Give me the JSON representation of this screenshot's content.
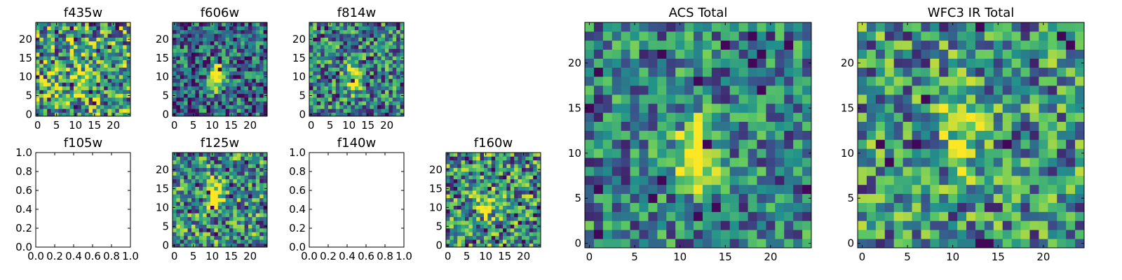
{
  "chart_data": {
    "type": "heatmap",
    "colormap": [
      "#440154",
      "#3b528b",
      "#21918c",
      "#5ec962",
      "#fde725"
    ],
    "panels": [
      {
        "id": "f435w",
        "title": "f435w",
        "has_data": true,
        "xticks": [
          "0",
          "5",
          "10",
          "15",
          "20"
        ],
        "yticks": [
          "0",
          "5",
          "10",
          "15",
          "20"
        ],
        "seed": 11,
        "peak": [
          12,
          9
        ],
        "strength": 0.35,
        "noise": 0.95,
        "base": 0.55
      },
      {
        "id": "f606w",
        "title": "f606w",
        "has_data": true,
        "xticks": [
          "0",
          "5",
          "10",
          "15",
          "20"
        ],
        "yticks": [
          "0",
          "5",
          "10",
          "15",
          "20"
        ],
        "seed": 23,
        "peak": [
          11,
          10
        ],
        "strength": 0.85,
        "noise": 0.75,
        "base": 0.35
      },
      {
        "id": "f814w",
        "title": "f814w",
        "has_data": true,
        "xticks": [
          "0",
          "5",
          "10",
          "15",
          "20"
        ],
        "yticks": [
          "0",
          "5",
          "10",
          "15",
          "20"
        ],
        "seed": 37,
        "peak": [
          11,
          10
        ],
        "strength": 0.6,
        "noise": 0.8,
        "base": 0.45
      },
      {
        "id": "f105w",
        "title": "f105w",
        "has_data": false,
        "xticks": [
          "0.0",
          "0.2",
          "0.4",
          "0.6",
          "0.8",
          "1.0"
        ],
        "yticks": [
          "0.0",
          "0.2",
          "0.4",
          "0.6",
          "0.8",
          "1.0"
        ]
      },
      {
        "id": "f125w",
        "title": "f125w",
        "has_data": true,
        "xticks": [
          "0",
          "5",
          "10",
          "15",
          "20"
        ],
        "yticks": [
          "0",
          "5",
          "10",
          "15",
          "20"
        ],
        "seed": 53,
        "peak": [
          11,
          13
        ],
        "strength": 0.55,
        "noise": 0.85,
        "base": 0.5
      },
      {
        "id": "f140w",
        "title": "f140w",
        "has_data": false,
        "xticks": [
          "0.0",
          "0.2",
          "0.4",
          "0.6",
          "0.8",
          "1.0"
        ],
        "yticks": [
          "0.0",
          "0.2",
          "0.4",
          "0.6",
          "0.8",
          "1.0"
        ]
      },
      {
        "id": "f160w",
        "title": "f160w",
        "has_data": true,
        "xticks": [
          "0",
          "5",
          "10",
          "15",
          "20"
        ],
        "yticks": [
          "0",
          "5",
          "10",
          "15",
          "20"
        ],
        "seed": 71,
        "peak": [
          10,
          11
        ],
        "strength": 0.45,
        "noise": 0.9,
        "base": 0.5
      },
      {
        "id": "acs-total",
        "title": "ACS Total",
        "has_data": true,
        "xticks": [
          "0",
          "5",
          "10",
          "15",
          "20"
        ],
        "yticks": [
          "0",
          "5",
          "10",
          "15",
          "20"
        ],
        "seed": 89,
        "peak": [
          12,
          10
        ],
        "strength": 0.75,
        "noise": 0.7,
        "base": 0.45
      },
      {
        "id": "wfc3-ir-total",
        "title": "WFC3 IR Total",
        "has_data": true,
        "xticks": [
          "0",
          "5",
          "10",
          "15",
          "20"
        ],
        "yticks": [
          "0",
          "5",
          "10",
          "15",
          "20"
        ],
        "seed": 97,
        "peak": [
          11,
          12
        ],
        "strength": 0.5,
        "noise": 0.8,
        "base": 0.5
      }
    ],
    "grid_size": 25,
    "extent": [
      -0.5,
      24.5
    ],
    "empty_axis_range": [
      0,
      1
    ]
  }
}
